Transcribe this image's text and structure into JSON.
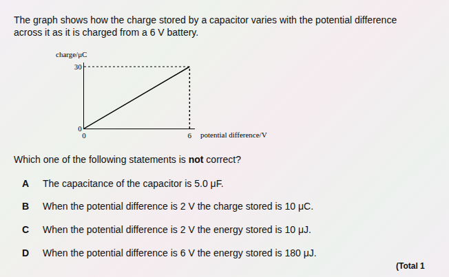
{
  "intro": [
    "The graph shows how the charge stored by a capacitor varies with the potential difference",
    "across it as it is charged from a 6 V battery."
  ],
  "chart_data": {
    "type": "line",
    "x_label": "potential difference/V",
    "y_label": "charge/μC",
    "x": [
      0,
      6
    ],
    "values": [
      0,
      30
    ],
    "color": "#000000",
    "xlim": [
      0,
      6.3
    ],
    "ylim": [
      0,
      32
    ],
    "xticks": [
      0,
      6
    ],
    "yticks": [
      0,
      30
    ],
    "grid": false
  },
  "question": {
    "before": "Which one of the following statements is ",
    "emphasis": "not",
    "after": " correct?"
  },
  "options": [
    {
      "letter": "A",
      "text": "The capacitance of the capacitor is 5.0 μF."
    },
    {
      "letter": "B",
      "text": "When the potential difference is 2 V the charge stored is 10 μC."
    },
    {
      "letter": "C",
      "text": "When the potential difference is 2 V the energy stored is 10 μJ."
    },
    {
      "letter": "D",
      "text": "When the potential difference is 6 V the energy stored is 180 μJ."
    }
  ],
  "footer": "(Total 1"
}
